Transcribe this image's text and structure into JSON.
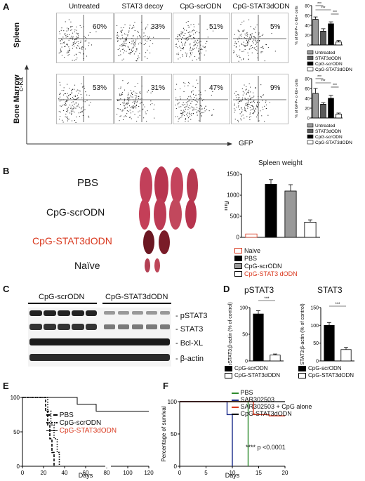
{
  "panels": {
    "a": "A",
    "b": "B",
    "c": "C",
    "d": "D",
    "e": "E",
    "f": "F"
  },
  "panel_a": {
    "columns": [
      "Untreated",
      "STAT3 decoy",
      "CpG-scrODN",
      "CpG-STAT3dODN"
    ],
    "rows": [
      "Spleen",
      "Bone Marrow"
    ],
    "spleen_pct": [
      "60%",
      "33%",
      "51%",
      "5%"
    ],
    "bm_pct": [
      "53%",
      "31%",
      "47%",
      "9%"
    ],
    "y_axis": "c-Kit",
    "x_axis": "GFP",
    "bar_ylabel": "% of GFP+ c-Kit+ cells",
    "legend": [
      "Untreated",
      "STAT3dODN",
      "CpG-scrODN",
      "CpG-STAT3dODN"
    ],
    "sig": "***"
  },
  "panel_b": {
    "rows": [
      "PBS",
      "CpG-scrODN",
      "CpG-STAT3dODN",
      "Naïve"
    ],
    "highlight_color": "#d9381e",
    "chart_title": "Spleen weight",
    "ylabel": "mg",
    "legend": [
      "Naive",
      "PBS",
      "CpG-scrODN",
      "CpG-STAT3 dODN"
    ]
  },
  "panel_c": {
    "groups": [
      "CpG-scrODN",
      "CpG-STAT3dODN"
    ],
    "bands": [
      "- pSTAT3",
      "- STAT3",
      "- Bcl-XL",
      "- β-actin"
    ]
  },
  "panel_d": {
    "titles": [
      "pSTAT3",
      "STAT3"
    ],
    "ylabels": [
      "pSTAT3:β-actin (% of control)",
      "STAT3:β-actin (% of control)"
    ],
    "legend": [
      "CpG-scrODN",
      "CpG-STAT3dODN"
    ],
    "sig": "***"
  },
  "panel_e": {
    "xlabel": "Days",
    "legend": [
      "PBS",
      "CpG-scrODN",
      "CpG-STAT3dODN"
    ]
  },
  "panel_f": {
    "ylabel": "Percentage of survival",
    "xlabel": "Days",
    "legend": [
      "PBS",
      "SAR302503",
      "SAR302503 + CpG alone",
      "CpG-STAT3dODN"
    ],
    "pvalue": "**** p <0.0001"
  },
  "chart_data": [
    {
      "type": "bar",
      "name_ref": "A spleen",
      "categories": [
        "Untreated",
        "STAT3dODN",
        "CpG-scrODN",
        "CpG-STAT3dODN"
      ],
      "values": [
        52,
        28,
        43,
        6
      ],
      "errors": [
        5,
        5,
        4,
        3
      ],
      "ylim": [
        0,
        80
      ],
      "yticks": [
        0,
        20,
        40,
        60,
        80
      ],
      "colors": [
        "#9a9a9a",
        "#5a5a5a",
        "#000000",
        "#ffffff"
      ]
    },
    {
      "type": "bar",
      "name_ref": "A bone marrow",
      "categories": [
        "Untreated",
        "STAT3dODN",
        "CpG-scrODN",
        "CpG-STAT3dODN"
      ],
      "values": [
        50,
        28,
        40,
        8
      ],
      "errors": [
        10,
        3,
        6,
        2
      ],
      "ylim": [
        0,
        80
      ],
      "yticks": [
        0,
        20,
        40,
        60,
        80
      ],
      "colors": [
        "#9a9a9a",
        "#5a5a5a",
        "#000000",
        "#ffffff"
      ]
    },
    {
      "type": "bar",
      "name_ref": "B spleen weight",
      "categories": [
        "Naive",
        "PBS",
        "CpG-scrODN",
        "CpG-STAT3 dODN"
      ],
      "values": [
        80,
        1260,
        1100,
        360
      ],
      "errors": [
        0,
        110,
        150,
        55
      ],
      "ylim": [
        0,
        1500
      ],
      "yticks": [
        0,
        500,
        1000,
        1500
      ],
      "colors": [
        "#ffffff",
        "#000000",
        "#999999",
        "#ffffff"
      ]
    },
    {
      "type": "bar",
      "name_ref": "D pSTAT3",
      "categories": [
        "CpG-scrODN",
        "CpG-STAT3dODN"
      ],
      "values": [
        88,
        11
      ],
      "errors": [
        6,
        2
      ],
      "ylim": [
        0,
        100
      ],
      "yticks": [
        0,
        50,
        100
      ],
      "colors": [
        "#000000",
        "#ffffff"
      ]
    },
    {
      "type": "bar",
      "name_ref": "D STAT3",
      "categories": [
        "CpG-scrODN",
        "CpG-STAT3dODN"
      ],
      "values": [
        100,
        32
      ],
      "errors": [
        8,
        6
      ],
      "ylim": [
        0,
        150
      ],
      "yticks": [
        0,
        50,
        100,
        150
      ],
      "colors": [
        "#000000",
        "#ffffff"
      ]
    },
    {
      "type": "line",
      "name_ref": "E survival",
      "x_ticks": [
        0,
        20,
        40,
        60,
        80,
        100,
        120
      ],
      "y_ticks": [
        0,
        50,
        100
      ],
      "series": [
        {
          "name": "PBS",
          "steps": [
            [
              0,
              100
            ],
            [
              20,
              100
            ],
            [
              22,
              80
            ],
            [
              24,
              60
            ],
            [
              26,
              40
            ],
            [
              28,
              20
            ],
            [
              30,
              0
            ]
          ]
        },
        {
          "name": "CpG-scrODN",
          "steps": [
            [
              0,
              100
            ],
            [
              22,
              100
            ],
            [
              24,
              80
            ],
            [
              27,
              60
            ],
            [
              30,
              40
            ],
            [
              33,
              20
            ],
            [
              35,
              0
            ]
          ]
        },
        {
          "name": "CpG-STAT3dODN",
          "steps": [
            [
              0,
              100
            ],
            [
              52,
              100
            ],
            [
              52,
              90
            ],
            [
              70,
              90
            ],
            [
              70,
              80
            ],
            [
              85,
              80
            ],
            [
              120,
              80
            ]
          ]
        }
      ]
    },
    {
      "type": "line",
      "name_ref": "F survival",
      "x_ticks": [
        0,
        5,
        10,
        15,
        20
      ],
      "y_ticks": [
        0,
        50,
        100
      ],
      "series": [
        {
          "name": "PBS",
          "steps": [
            [
              0,
              100
            ],
            [
              13,
              100
            ],
            [
              13,
              0
            ]
          ]
        },
        {
          "name": "SAR302503",
          "steps": [
            [
              0,
              100
            ],
            [
              9,
              100
            ],
            [
              9,
              80
            ],
            [
              10,
              80
            ],
            [
              10,
              0
            ]
          ]
        },
        {
          "name": "SAR302503 + CpG alone",
          "steps": [
            [
              0,
              100
            ],
            [
              14,
              100
            ],
            [
              14,
              80
            ],
            [
              17,
              80
            ],
            [
              17,
              78
            ],
            [
              20,
              78
            ]
          ]
        },
        {
          "name": "CpG-STAT3dODN",
          "steps": [
            [
              0,
              100
            ],
            [
              20,
              100
            ]
          ]
        }
      ]
    }
  ]
}
